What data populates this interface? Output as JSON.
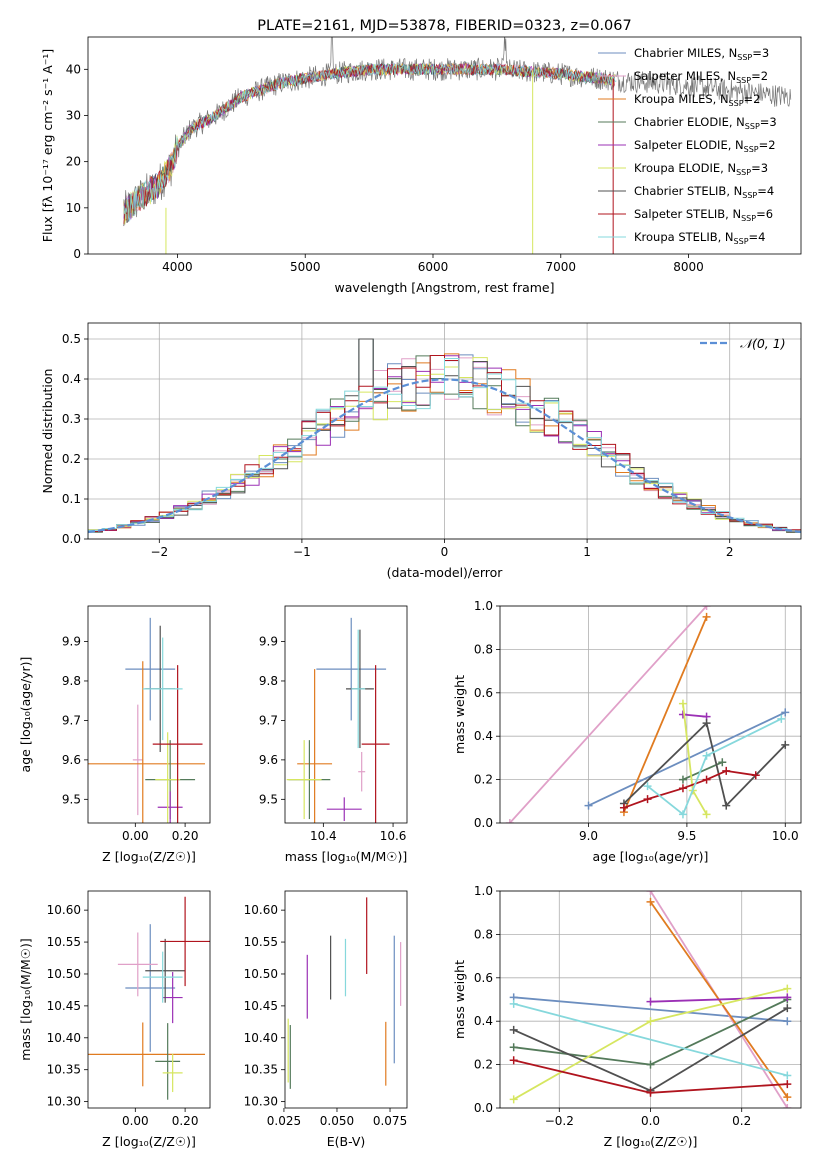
{
  "colors": [
    "#6c8ebf",
    "#e0a0c8",
    "#e07b20",
    "#547a5a",
    "#9b30b5",
    "#d6e660",
    "#505050",
    "#b0141e",
    "#86d8dc"
  ],
  "chart_data": [
    {
      "id": "spectrum",
      "type": "line",
      "title": "PLATE=2161, MJD=53878, FIBERID=0323, z=0.067",
      "xlabel": "wavelength [Angstrom, rest frame]",
      "ylabel": "Flux [fλ 10⁻¹⁷ erg cm⁻² s⁻¹ A⁻¹]",
      "xlim": [
        3300,
        8880
      ],
      "ylim": [
        0,
        47
      ],
      "xticks": [
        4000,
        5000,
        6000,
        7000,
        8000
      ],
      "yticks": [
        0,
        10,
        20,
        30,
        40
      ],
      "legend_loc": "upper right",
      "legend": [
        {
          "label": "Chabrier MILES, N",
          "sub": "SSP",
          "suffix": "=3"
        },
        {
          "label": "Salpeter MILES, N",
          "sub": "SSP",
          "suffix": "=2"
        },
        {
          "label": "Kroupa MILES, N",
          "sub": "SSP",
          "suffix": "=2"
        },
        {
          "label": "Chabrier ELODIE, N",
          "sub": "SSP",
          "suffix": "=3"
        },
        {
          "label": "Salpeter ELODIE, N",
          "sub": "SSP",
          "suffix": "=2"
        },
        {
          "label": "Kroupa ELODIE, N",
          "sub": "SSP",
          "suffix": "=3"
        },
        {
          "label": "Chabrier STELIB, N",
          "sub": "SSP",
          "suffix": "=4"
        },
        {
          "label": "Salpeter STELIB, N",
          "sub": "SSP",
          "suffix": "=6"
        },
        {
          "label": "Kroupa STELIB, N",
          "sub": "SSP",
          "suffix": "=4"
        }
      ],
      "continuum": {
        "x": [
          3580,
          3700,
          3850,
          3950,
          4000,
          4100,
          4300,
          4500,
          4800,
          5000,
          5200,
          5500,
          6000,
          6500,
          7000,
          7300,
          7500,
          7800,
          8000,
          8300,
          8800
        ],
        "y": [
          9,
          12,
          15,
          19,
          23,
          27,
          30,
          34,
          37,
          38,
          39,
          40,
          40,
          40,
          39,
          38,
          37.5,
          37,
          36.5,
          35.5,
          34
        ]
      },
      "data_range": [
        3580,
        8800
      ],
      "model_range": [
        3580,
        7400
      ]
    },
    {
      "id": "residuals",
      "type": "histogram",
      "xlabel": "(data-model)/error",
      "ylabel": "Normed distribution",
      "xlim": [
        -2.5,
        2.5
      ],
      "ylim": [
        0,
        0.54
      ],
      "xticks": [
        -2,
        -1,
        0,
        1,
        2
      ],
      "yticks": [
        0,
        0.1,
        0.2,
        0.3,
        0.4,
        0.5
      ],
      "grid": true,
      "legend": "𝒩(0, 1)",
      "bin_edges": [
        -2.5,
        2.5
      ],
      "nbins": 50
    },
    {
      "id": "age-vs-Z",
      "type": "errorbar",
      "xlabel": "Z [log₁₀(Z/Z☉)]",
      "ylabel": "age  [log₁₀(age/yr)]",
      "xlim": [
        -0.19,
        0.3
      ],
      "ylim": [
        9.44,
        9.99
      ],
      "xticks": [
        0.0,
        0.2
      ],
      "yticks": [
        9.5,
        9.6,
        9.7,
        9.8,
        9.9
      ],
      "points": [
        {
          "x": 0.06,
          "xerr": 0.1,
          "y": 9.83,
          "yerr": 0.13
        },
        {
          "x": 0.01,
          "xerr": 0.02,
          "y": 9.6,
          "yerr": 0.14
        },
        {
          "x": 0.03,
          "xerr": 0.25,
          "y": 9.59,
          "yerr": 0.26
        },
        {
          "x": 0.14,
          "xerr": 0.1,
          "y": 9.55,
          "yerr": 0.1
        },
        {
          "x": 0.14,
          "xerr": 0.05,
          "y": 9.48,
          "yerr": 0.04
        },
        {
          "x": 0.13,
          "xerr": 0.05,
          "y": 9.55,
          "yerr": 0.12
        },
        {
          "x": 0.1,
          "xerr": 0.06,
          "y": 9.78,
          "yerr": 0.16
        },
        {
          "x": 0.17,
          "xerr": 0.1,
          "y": 9.64,
          "yerr": 0.2
        },
        {
          "x": 0.11,
          "xerr": 0.08,
          "y": 9.78,
          "yerr": 0.13
        }
      ]
    },
    {
      "id": "age-vs-mass",
      "type": "errorbar",
      "xlabel": "mass [log₁₀(M/M☉)]",
      "ylabel": "",
      "xlim": [
        10.29,
        10.64
      ],
      "ylim": [
        9.44,
        9.99
      ],
      "xticks": [
        10.4,
        10.6
      ],
      "yticks": [
        9.5,
        9.6,
        9.7,
        9.8,
        9.9
      ],
      "points": [
        {
          "x": 10.48,
          "xerr": 0.1,
          "y": 9.83,
          "yerr": 0.13
        },
        {
          "x": 10.51,
          "xerr": 0.01,
          "y": 9.57,
          "yerr": 0.05
        },
        {
          "x": 10.375,
          "xerr": 0.05,
          "y": 9.59,
          "yerr": 0.24
        },
        {
          "x": 10.36,
          "xerr": 0.06,
          "y": 9.55,
          "yerr": 0.1
        },
        {
          "x": 10.46,
          "xerr": 0.05,
          "y": 9.475,
          "yerr": 0.03
        },
        {
          "x": 10.345,
          "xerr": 0.05,
          "y": 9.55,
          "yerr": 0.1
        },
        {
          "x": 10.505,
          "xerr": 0.04,
          "y": 9.78,
          "yerr": 0.15
        },
        {
          "x": 10.55,
          "xerr": 0.04,
          "y": 9.64,
          "yerr": 0.2
        },
        {
          "x": 10.5,
          "xerr": 0.02,
          "y": 9.78,
          "yerr": 0.15
        }
      ]
    },
    {
      "id": "weight-vs-age",
      "type": "line",
      "xlabel": "age  [log₁₀(age/yr)]",
      "ylabel": "mass weight",
      "xlim": [
        8.55,
        10.08
      ],
      "ylim": [
        0,
        1
      ],
      "xticks": [
        9.0,
        9.5,
        10.0
      ],
      "yticks": [
        0.0,
        0.2,
        0.4,
        0.6,
        0.8,
        1.0
      ],
      "grid": true,
      "series": [
        {
          "x": [
            9.0,
            10.0
          ],
          "y": [
            0.08,
            0.51
          ]
        },
        {
          "x": [
            8.6,
            9.6
          ],
          "y": [
            0.0,
            1.0
          ]
        },
        {
          "x": [
            9.18,
            9.6
          ],
          "y": [
            0.05,
            0.95
          ]
        },
        {
          "x": [
            9.48,
            9.68
          ],
          "y": [
            0.2,
            0.28
          ]
        },
        {
          "x": [
            9.48,
            9.6
          ],
          "y": [
            0.5,
            0.49
          ]
        },
        {
          "x": [
            9.48,
            9.53,
            9.6
          ],
          "y": [
            0.55,
            0.15,
            0.04
          ]
        },
        {
          "x": [
            9.18,
            9.6,
            9.7,
            10.0
          ],
          "y": [
            0.09,
            0.46,
            0.08,
            0.36
          ]
        },
        {
          "x": [
            9.18,
            9.3,
            9.48,
            9.6,
            9.7,
            9.85
          ],
          "y": [
            0.07,
            0.11,
            0.16,
            0.2,
            0.24,
            0.22
          ]
        },
        {
          "x": [
            9.3,
            9.48,
            9.6,
            9.98
          ],
          "y": [
            0.17,
            0.04,
            0.31,
            0.48
          ]
        }
      ]
    },
    {
      "id": "mass-vs-Z",
      "type": "errorbar",
      "xlabel": "Z [log₁₀(Z/Z☉)]",
      "ylabel": "mass [log₁₀(M/M☉)]",
      "xlim": [
        -0.19,
        0.3
      ],
      "ylim": [
        10.29,
        10.63
      ],
      "xticks": [
        0.0,
        0.2
      ],
      "yticks": [
        10.3,
        10.35,
        10.4,
        10.45,
        10.5,
        10.55,
        10.6
      ],
      "points": [
        {
          "x": 0.06,
          "xerr": 0.1,
          "y": 10.478,
          "yerr": 0.1
        },
        {
          "x": 0.01,
          "xerr": 0.08,
          "y": 10.515,
          "yerr": 0.05
        },
        {
          "x": 0.03,
          "xerr": 0.25,
          "y": 10.374,
          "yerr": 0.05
        },
        {
          "x": 0.13,
          "xerr": 0.05,
          "y": 10.363,
          "yerr": 0.06
        },
        {
          "x": 0.15,
          "xerr": 0.04,
          "y": 10.463,
          "yerr": 0.04
        },
        {
          "x": 0.15,
          "xerr": 0.04,
          "y": 10.345,
          "yerr": 0.03
        },
        {
          "x": 0.12,
          "xerr": 0.08,
          "y": 10.505,
          "yerr": 0.05
        },
        {
          "x": 0.2,
          "xerr": 0.1,
          "y": 10.551,
          "yerr": 0.07
        },
        {
          "x": 0.11,
          "xerr": 0.08,
          "y": 10.495,
          "yerr": 0.04
        }
      ]
    },
    {
      "id": "mass-vs-EBV",
      "type": "errorbar",
      "xlabel": "E(B-V)",
      "ylabel": "",
      "xlim": [
        0.0255,
        0.083
      ],
      "ylim": [
        10.29,
        10.63
      ],
      "xticks": [
        0.025,
        0.05,
        0.075
      ],
      "yticks": [
        10.3,
        10.35,
        10.4,
        10.45,
        10.5,
        10.55,
        10.6
      ],
      "points": [
        {
          "x": 0.077,
          "xerr": 0,
          "y": 10.46,
          "yerr": 0.1
        },
        {
          "x": 0.08,
          "xerr": 0,
          "y": 10.5,
          "yerr": 0.05
        },
        {
          "x": 0.073,
          "xerr": 0,
          "y": 10.375,
          "yerr": 0.05
        },
        {
          "x": 0.028,
          "xerr": 0,
          "y": 10.37,
          "yerr": 0.05
        },
        {
          "x": 0.036,
          "xerr": 0,
          "y": 10.48,
          "yerr": 0.05
        },
        {
          "x": 0.027,
          "xerr": 0,
          "y": 10.38,
          "yerr": 0.05
        },
        {
          "x": 0.047,
          "xerr": 0,
          "y": 10.51,
          "yerr": 0.05
        },
        {
          "x": 0.064,
          "xerr": 0,
          "y": 10.56,
          "yerr": 0.06
        },
        {
          "x": 0.054,
          "xerr": 0,
          "y": 10.51,
          "yerr": 0.045
        }
      ]
    },
    {
      "id": "weight-vs-Z",
      "type": "line",
      "xlabel": "Z [log₁₀(Z/Z☉)]",
      "ylabel": "mass weight",
      "xlim": [
        -0.33,
        0.33
      ],
      "ylim": [
        0,
        1
      ],
      "xticks": [
        -0.2,
        0.0,
        0.2
      ],
      "yticks": [
        0.0,
        0.2,
        0.4,
        0.6,
        0.8,
        1.0
      ],
      "grid": true,
      "series": [
        {
          "x": [
            -0.3,
            0.3
          ],
          "y": [
            0.51,
            0.4
          ]
        },
        {
          "x": [
            0.0,
            0.3
          ],
          "y": [
            1.0,
            0.0
          ]
        },
        {
          "x": [
            0.0,
            0.3
          ],
          "y": [
            0.95,
            0.05
          ]
        },
        {
          "x": [
            -0.3,
            0.0,
            0.3
          ],
          "y": [
            0.28,
            0.2,
            0.5
          ]
        },
        {
          "x": [
            0.0,
            0.3
          ],
          "y": [
            0.49,
            0.51
          ]
        },
        {
          "x": [
            -0.3,
            0.0,
            0.3
          ],
          "y": [
            0.04,
            0.4,
            0.55
          ]
        },
        {
          "x": [
            -0.3,
            0.0,
            0.3
          ],
          "y": [
            0.36,
            0.08,
            0.46
          ]
        },
        {
          "x": [
            -0.3,
            0.0,
            0.3
          ],
          "y": [
            0.22,
            0.07,
            0.11
          ]
        },
        {
          "x": [
            -0.3,
            0.3
          ],
          "y": [
            0.48,
            0.15
          ]
        }
      ]
    }
  ]
}
